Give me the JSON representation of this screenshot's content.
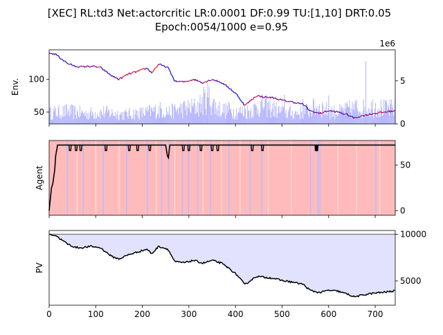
{
  "figure": {
    "title_line1": "[XEC] RL:td3 Net:actorcritic LR:0.0001 DF:0.99 TU:[1,10] DRT:0.05",
    "title_line2": "Epoch:0054/1000 e=0.95"
  },
  "chart_data": [
    {
      "type": "line",
      "ylabel": "Env.",
      "xlim": [
        0,
        743
      ],
      "ylim": [
        32,
        145
      ],
      "yticks": [
        50,
        100
      ],
      "secondary_ylim": [
        0,
        8600000
      ],
      "secondary_yticks": [
        0,
        5000000
      ],
      "secondary_ytick_labels": [
        "0",
        "5"
      ],
      "secondary_offset_label": "1e6",
      "colors": {
        "up": "#ff0000",
        "down": "#0000ff",
        "volume": "#b0b0ff"
      },
      "series": [
        {
          "x": [
            0,
            15,
            25,
            40,
            55,
            70,
            90,
            110,
            135,
            150,
            170,
            190,
            210,
            220,
            235,
            255,
            270,
            290,
            310,
            330,
            350,
            370,
            390,
            405,
            420,
            445,
            460,
            480,
            500,
            525,
            545,
            560,
            580,
            600,
            620,
            640,
            655,
            670,
            690,
            710,
            730,
            743
          ],
          "values": [
            140,
            138,
            132,
            124,
            120,
            119,
            120,
            118,
            105,
            100,
            108,
            112,
            117,
            110,
            123,
            118,
            97,
            96,
            100,
            95,
            100,
            95,
            85,
            75,
            60,
            75,
            73,
            72,
            68,
            65,
            62,
            52,
            48,
            52,
            50,
            46,
            41,
            44,
            47,
            49,
            51,
            52
          ]
        }
      ],
      "volume": {
        "x": [
          0,
          40,
          80,
          120,
          160,
          200,
          240,
          260,
          280,
          320,
          340,
          360,
          380,
          420,
          440,
          460,
          500,
          520,
          540,
          580,
          600,
          620,
          640,
          660,
          680,
          700,
          720,
          743
        ],
        "values": [
          1400000,
          1600000,
          1300000,
          1500000,
          1200000,
          1400000,
          1800000,
          1500000,
          1900000,
          2200000,
          3500000,
          2000000,
          1700000,
          1500000,
          1900000,
          2400000,
          1500000,
          1400000,
          1400000,
          2300000,
          1600000,
          1500000,
          1800000,
          2100000,
          1900000,
          2300000,
          1900000,
          2000000
        ]
      }
    },
    {
      "type": "line",
      "ylabel": "Agent",
      "xlim": [
        0,
        743
      ],
      "ylim": [
        -5,
        77
      ],
      "yticks": [
        0,
        50
      ],
      "colors": {
        "line": "#000000",
        "background": "#ffbbbb",
        "alt": "#bbbbff"
      },
      "series": [
        {
          "x": [
            0,
            5,
            8,
            12,
            14,
            18,
            250,
            254,
            256,
            259,
            743
          ],
          "values": [
            0,
            25,
            30,
            45,
            60,
            72,
            72,
            60,
            58,
            72,
            72
          ]
        }
      ],
      "dips": [
        45,
        58,
        68,
        122,
        172,
        190,
        216,
        288,
        300,
        326,
        350,
        362,
        436,
        458,
        573,
        575
      ],
      "blue_bands": [
        38,
        72,
        115,
        165,
        210,
        240,
        256,
        285,
        298,
        318,
        345,
        385,
        430,
        455,
        560,
        576,
        580,
        700
      ],
      "white_lines": [
        60,
        100,
        150,
        230,
        270,
        330,
        370,
        410,
        470,
        520,
        620,
        660,
        710
      ]
    },
    {
      "type": "area",
      "ylabel": "PV",
      "xlim": [
        0,
        743
      ],
      "ylim": [
        2400,
        10400
      ],
      "secondary_yticks": [
        5000,
        10000
      ],
      "reference": 10000,
      "colors": {
        "line": "#000000",
        "fill": "#e2e2ff",
        "reference": "#808080"
      },
      "series": [
        {
          "x": [
            0,
            15,
            25,
            40,
            55,
            70,
            90,
            110,
            135,
            150,
            170,
            190,
            210,
            220,
            235,
            255,
            270,
            290,
            310,
            330,
            350,
            370,
            390,
            405,
            420,
            445,
            460,
            480,
            500,
            525,
            545,
            560,
            580,
            600,
            620,
            640,
            655,
            670,
            690,
            710,
            730,
            743
          ],
          "values": [
            10000,
            9850,
            9450,
            8950,
            8600,
            8550,
            8700,
            8550,
            7600,
            7350,
            7800,
            8100,
            8400,
            7900,
            8700,
            8400,
            7050,
            6950,
            7200,
            6900,
            7200,
            6900,
            6200,
            5550,
            4600,
            5500,
            5400,
            5300,
            5050,
            4850,
            4650,
            4000,
            3750,
            4000,
            3900,
            3600,
            3300,
            3450,
            3650,
            3750,
            3850,
            3950
          ]
        }
      ],
      "xticks": [
        0,
        100,
        200,
        300,
        400,
        500,
        600,
        700
      ]
    }
  ]
}
